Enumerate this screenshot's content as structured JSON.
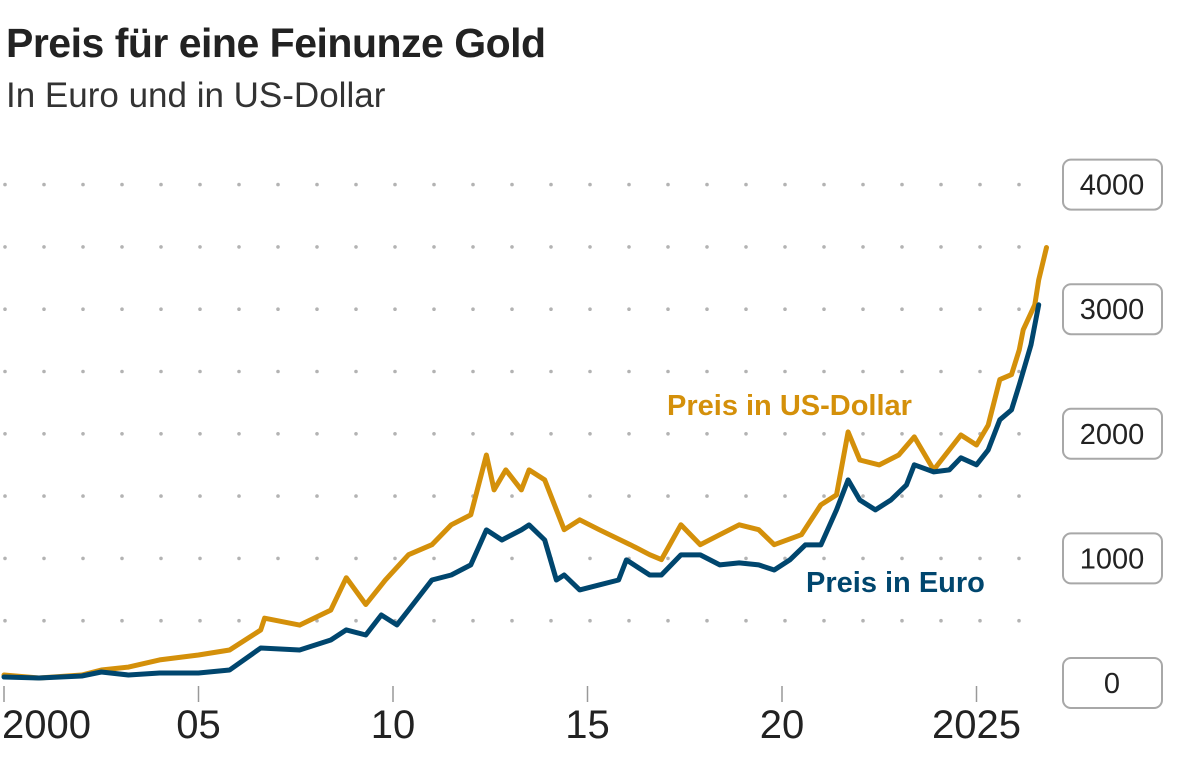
{
  "chart_data": {
    "type": "line",
    "title": "Preis für eine Feinunze Gold",
    "subtitle": "In Euro und in US-Dollar",
    "xlabel": "",
    "ylabel": "",
    "xlim": [
      2000,
      2026.9
    ],
    "ylim": [
      0,
      4000
    ],
    "grid": "dotted horizontal",
    "y_axis_position": "right",
    "x_ticks": [
      {
        "value": 2000,
        "label": "2000"
      },
      {
        "value": 2005,
        "label": "05"
      },
      {
        "value": 2010,
        "label": "10"
      },
      {
        "value": 2015,
        "label": "15"
      },
      {
        "value": 2020,
        "label": "20"
      },
      {
        "value": 2025,
        "label": "2025"
      }
    ],
    "y_ticks": [
      {
        "value": 0,
        "label": "0"
      },
      {
        "value": 1000,
        "label": "1000"
      },
      {
        "value": 2000,
        "label": "2000"
      },
      {
        "value": 3000,
        "label": "3000"
      },
      {
        "value": 4000,
        "label": "4000"
      }
    ],
    "series": [
      {
        "name": "Preis in US-Dollar",
        "color": "#d4900a",
        "x": [
          2000.0,
          2000.9,
          2002.0,
          2002.5,
          2003.2,
          2004.0,
          2005.0,
          2005.8,
          2006.6,
          2006.7,
          2007.6,
          2008.4,
          2008.8,
          2009.3,
          2009.8,
          2010.4,
          2011.0,
          2011.5,
          2012.0,
          2012.4,
          2012.6,
          2012.9,
          2013.3,
          2013.5,
          2013.9,
          2014.2,
          2014.4,
          2014.8,
          2015.3,
          2016.1,
          2016.6,
          2016.9,
          2017.4,
          2017.9,
          2018.4,
          2018.9,
          2019.4,
          2019.8,
          2020.5,
          2021.0,
          2021.4,
          2021.7,
          2022.0,
          2022.5,
          2023.0,
          2023.4,
          2023.9,
          2024.6,
          2025.0,
          2025.3,
          2025.6,
          2025.9,
          2026.1,
          2026.2,
          2026.5,
          2026.6,
          2026.8
        ],
        "values": [
          64,
          40,
          64,
          104,
          128,
          185,
          225,
          265,
          425,
          520,
          465,
          585,
          845,
          630,
          825,
          1030,
          1110,
          1270,
          1350,
          1830,
          1550,
          1710,
          1550,
          1710,
          1630,
          1390,
          1230,
          1310,
          1230,
          1110,
          1030,
          990,
          1270,
          1110,
          1190,
          1270,
          1230,
          1110,
          1190,
          1430,
          1510,
          2015,
          1790,
          1750,
          1830,
          1975,
          1710,
          1990,
          1910,
          2070,
          2435,
          2475,
          2675,
          2835,
          3035,
          3235,
          3495
        ]
      },
      {
        "name": "Preis in Euro",
        "color": "#00466e",
        "x": [
          2000.0,
          2000.9,
          2002.0,
          2002.5,
          2003.2,
          2004.0,
          2005.0,
          2005.8,
          2006.6,
          2007.6,
          2008.4,
          2008.8,
          2009.3,
          2009.7,
          2010.1,
          2010.4,
          2011.0,
          2011.5,
          2012.0,
          2012.4,
          2012.8,
          2013.3,
          2013.5,
          2013.9,
          2014.2,
          2014.4,
          2014.8,
          2015.3,
          2015.8,
          2016.0,
          2016.6,
          2016.9,
          2017.4,
          2017.9,
          2018.4,
          2018.9,
          2019.4,
          2019.8,
          2020.2,
          2020.6,
          2021.0,
          2021.4,
          2021.7,
          2022.0,
          2022.4,
          2022.8,
          2023.2,
          2023.4,
          2023.9,
          2024.3,
          2024.6,
          2025.0,
          2025.3,
          2025.6,
          2025.9,
          2026.1,
          2026.4,
          2026.6
        ],
        "values": [
          48,
          40,
          56,
          88,
          64,
          80,
          80,
          104,
          281,
          265,
          345,
          426,
          385,
          546,
          466,
          586,
          827,
          867,
          948,
          1229,
          1148,
          1229,
          1269,
          1148,
          827,
          867,
          747,
          787,
          827,
          988,
          867,
          867,
          1028,
          1028,
          948,
          964,
          948,
          907,
          988,
          1108,
          1108,
          1389,
          1630,
          1469,
          1389,
          1469,
          1590,
          1751,
          1694,
          1710,
          1807,
          1751,
          1871,
          2112,
          2192,
          2393,
          2714,
          3035
        ]
      }
    ],
    "annotations": [
      {
        "text": "Preis in US-Dollar",
        "series": "Preis in US-Dollar"
      },
      {
        "text": "Preis in Euro",
        "series": "Preis in Euro"
      }
    ]
  }
}
